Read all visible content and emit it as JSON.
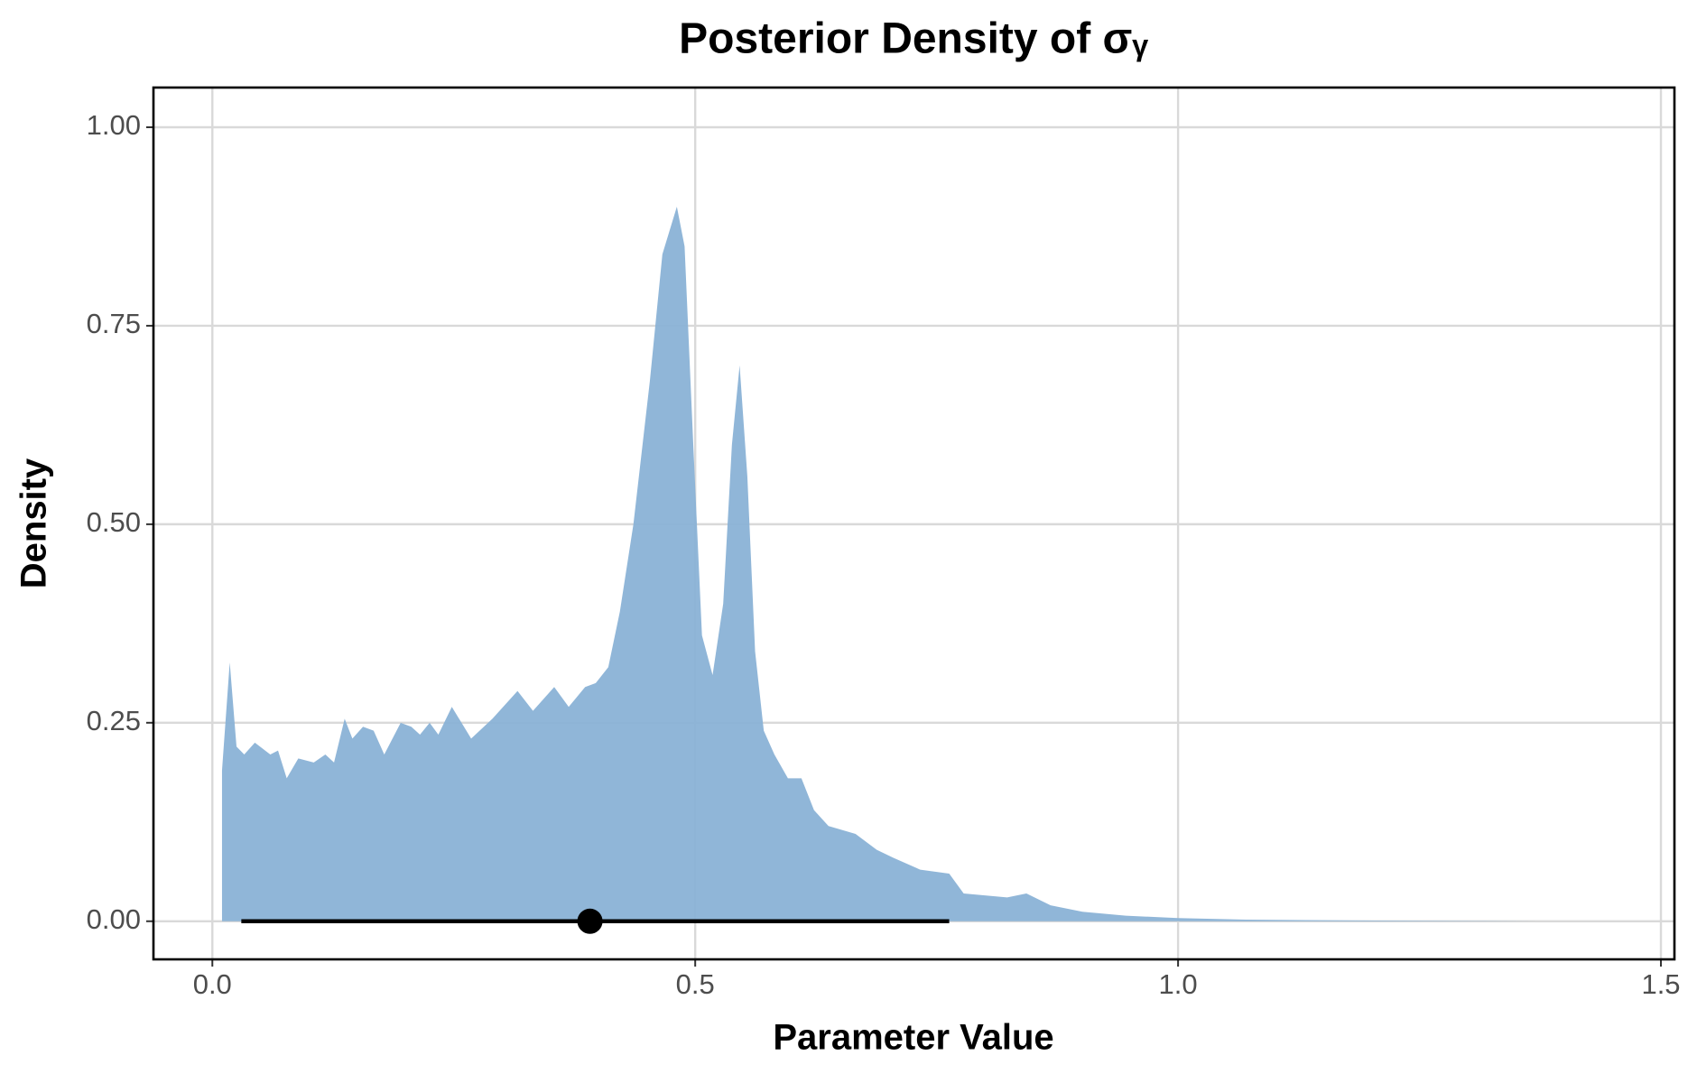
{
  "chart_data": {
    "type": "area",
    "title": "Posterior Density of σᵧ",
    "xlabel": "Parameter Value",
    "ylabel": "Density",
    "x": [
      0.01,
      0.018,
      0.025,
      0.033,
      0.044,
      0.06,
      0.068,
      0.077,
      0.089,
      0.105,
      0.117,
      0.126,
      0.137,
      0.145,
      0.156,
      0.167,
      0.178,
      0.195,
      0.206,
      0.215,
      0.225,
      0.234,
      0.248,
      0.268,
      0.29,
      0.316,
      0.332,
      0.354,
      0.369,
      0.386,
      0.397,
      0.41,
      0.422,
      0.436,
      0.453,
      0.466,
      0.481,
      0.489,
      0.498,
      0.507,
      0.518,
      0.529,
      0.538,
      0.546,
      0.554,
      0.562,
      0.571,
      0.582,
      0.596,
      0.61,
      0.623,
      0.638,
      0.666,
      0.688,
      0.705,
      0.733,
      0.763,
      0.778,
      0.823,
      0.843,
      0.868,
      0.901,
      0.946,
      1.0,
      1.07,
      1.18,
      1.372
    ],
    "series": [
      {
        "name": "Density",
        "color": "#8ab2d6",
        "values": [
          0.19,
          0.326,
          0.22,
          0.21,
          0.225,
          0.21,
          0.215,
          0.18,
          0.205,
          0.2,
          0.21,
          0.2,
          0.255,
          0.23,
          0.245,
          0.24,
          0.21,
          0.25,
          0.245,
          0.235,
          0.25,
          0.235,
          0.27,
          0.23,
          0.255,
          0.29,
          0.265,
          0.295,
          0.27,
          0.295,
          0.3,
          0.32,
          0.39,
          0.5,
          0.68,
          0.84,
          0.9,
          0.85,
          0.6,
          0.36,
          0.31,
          0.4,
          0.6,
          0.7,
          0.56,
          0.34,
          0.24,
          0.21,
          0.18,
          0.18,
          0.14,
          0.12,
          0.11,
          0.09,
          0.08,
          0.065,
          0.06,
          0.035,
          0.03,
          0.035,
          0.02,
          0.012,
          0.007,
          0.004,
          0.002,
          0.001,
          0.0
        ]
      }
    ],
    "interval": {
      "point": 0.391,
      "lower": 0.03,
      "upper": 0.763
    },
    "xlim": [
      -0.061,
      1.514
    ],
    "ylim": [
      -0.048,
      1.05
    ],
    "xticks": [
      {
        "value": 0,
        "label": "0.0"
      },
      0.5,
      {
        "value": 1,
        "label": "1.0"
      },
      1.5
    ],
    "yticks": [
      {
        "value": 0,
        "label": "0.00"
      },
      0.25,
      {
        "value": 0.5,
        "label": "0.50"
      },
      0.75,
      {
        "value": 1,
        "label": "1.00"
      }
    ],
    "grid": true
  }
}
